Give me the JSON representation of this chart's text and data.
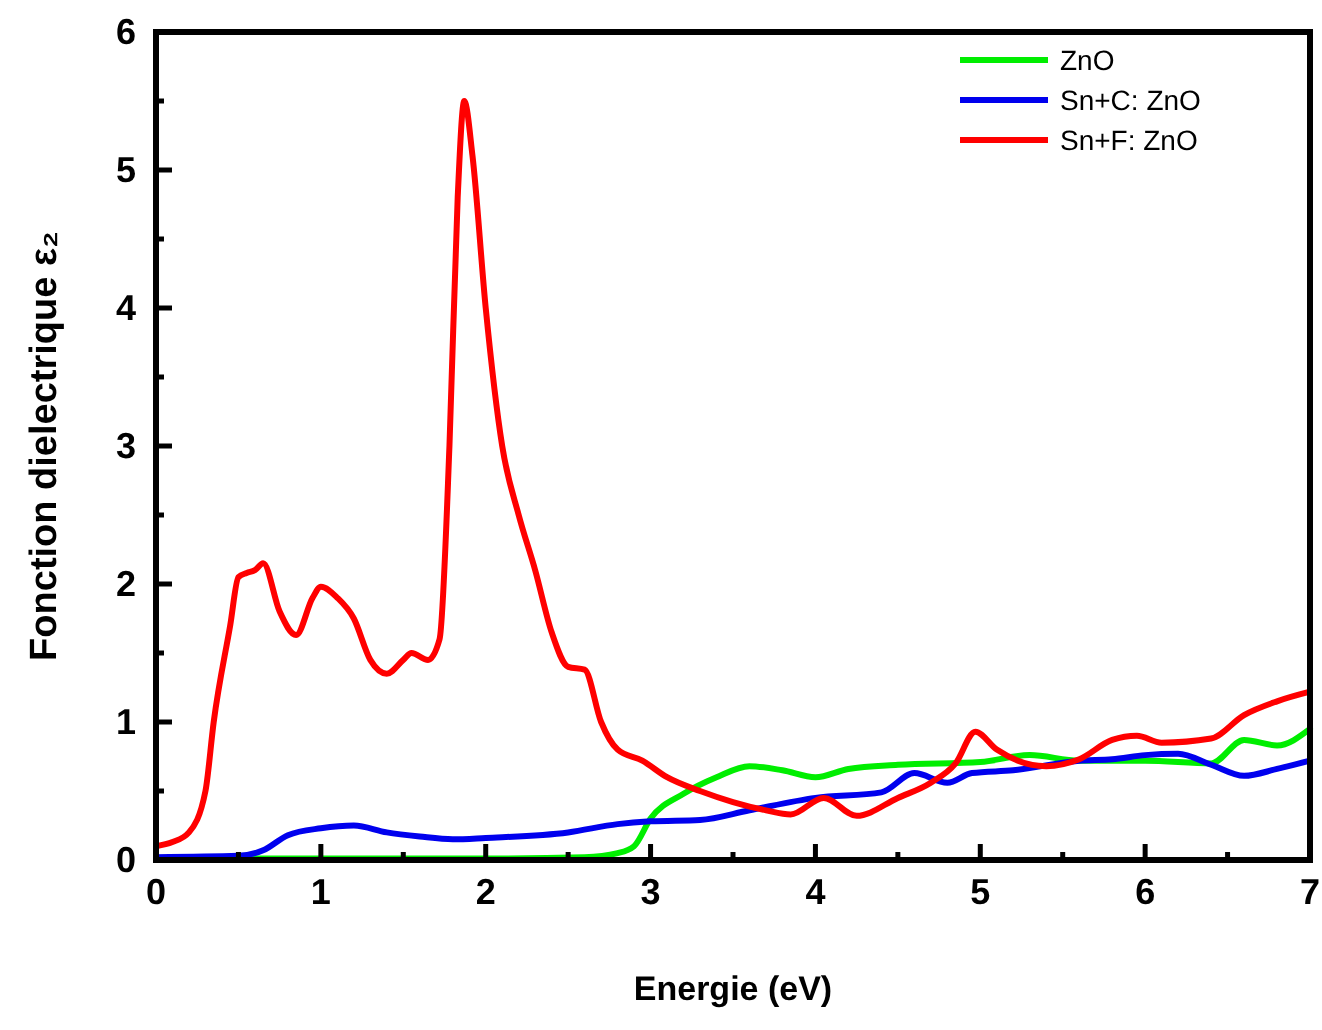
{
  "chart_data": {
    "type": "line",
    "xlabel": "Energie (eV)",
    "ylabel": "Fonction dielectrique  ε₂",
    "xlim": [
      0,
      7
    ],
    "ylim": [
      0,
      6
    ],
    "xticks": [
      0,
      {
        "value": 0.5,
        "label": null
      },
      1,
      {
        "value": 1.5,
        "label": null
      },
      2,
      {
        "value": 2.5,
        "label": null
      },
      3,
      {
        "value": 3.5,
        "label": null
      },
      4,
      {
        "value": 4.5,
        "label": null
      },
      5,
      {
        "value": 5.5,
        "label": null
      },
      6,
      {
        "value": 6.5,
        "label": null
      },
      7
    ],
    "yticks": [
      0,
      {
        "value": 0.5,
        "label": null
      },
      1,
      {
        "value": 1.5,
        "label": null
      },
      2,
      {
        "value": 2.5,
        "label": null
      },
      3,
      {
        "value": 3.5,
        "label": null
      },
      4,
      {
        "value": 4.5,
        "label": null
      },
      5,
      {
        "value": 5.5,
        "label": null
      },
      6
    ],
    "grid": false,
    "legend": "top right",
    "line_style": "solid",
    "marker": "none",
    "series": [
      {
        "name": "ZnO",
        "color": "#00ee00",
        "x": [
          0,
          1,
          2,
          2.6,
          2.8,
          2.9,
          3.0,
          3.2,
          3.4,
          3.6,
          3.8,
          4.0,
          4.2,
          4.5,
          5.0,
          5.3,
          5.6,
          6.0,
          6.4,
          6.6,
          6.8,
          7.0
        ],
        "values": [
          0.01,
          0.01,
          0.01,
          0.02,
          0.05,
          0.1,
          0.3,
          0.48,
          0.6,
          0.68,
          0.65,
          0.6,
          0.66,
          0.69,
          0.71,
          0.76,
          0.72,
          0.72,
          0.7,
          0.87,
          0.83,
          0.95
        ]
      },
      {
        "name": "Sn+C: ZnO",
        "color": "#0000ee",
        "x": [
          0,
          0.5,
          0.65,
          0.8,
          1.0,
          1.2,
          1.4,
          1.6,
          1.8,
          2.0,
          2.5,
          2.8,
          3.0,
          3.3,
          3.6,
          4.0,
          4.4,
          4.6,
          4.8,
          4.95,
          5.2,
          5.6,
          5.8,
          6.0,
          6.2,
          6.4,
          6.6,
          6.8,
          7.0
        ],
        "values": [
          0.02,
          0.03,
          0.07,
          0.18,
          0.23,
          0.25,
          0.2,
          0.17,
          0.15,
          0.16,
          0.2,
          0.26,
          0.28,
          0.29,
          0.36,
          0.45,
          0.49,
          0.63,
          0.56,
          0.63,
          0.65,
          0.72,
          0.73,
          0.76,
          0.77,
          0.69,
          0.61,
          0.66,
          0.72
        ]
      },
      {
        "name": "Sn+F: ZnO",
        "color": "#ff0000",
        "x": [
          0,
          0.1,
          0.2,
          0.3,
          0.35,
          0.45,
          0.5,
          0.55,
          0.6,
          0.65,
          0.75,
          0.85,
          0.95,
          1.0,
          1.1,
          1.2,
          1.3,
          1.4,
          1.5,
          1.55,
          1.65,
          1.72,
          1.78,
          1.83,
          1.87,
          1.92,
          2.0,
          2.1,
          2.2,
          2.3,
          2.4,
          2.5,
          2.6,
          2.7,
          2.8,
          2.95,
          3.1,
          3.3,
          3.5,
          3.7,
          3.85,
          4.05,
          4.25,
          4.5,
          4.7,
          4.85,
          4.97,
          5.1,
          5.4,
          5.6,
          5.8,
          5.95,
          6.1,
          6.4,
          6.6,
          6.8,
          7.0
        ],
        "values": [
          0.1,
          0.13,
          0.2,
          0.5,
          1.0,
          1.7,
          2.05,
          2.08,
          2.1,
          2.15,
          1.8,
          1.63,
          1.9,
          1.98,
          1.9,
          1.75,
          1.45,
          1.35,
          1.45,
          1.5,
          1.45,
          1.6,
          3.0,
          4.8,
          5.5,
          5.1,
          4.0,
          3.0,
          2.5,
          2.1,
          1.65,
          1.4,
          1.38,
          1.0,
          0.8,
          0.72,
          0.6,
          0.5,
          0.42,
          0.36,
          0.33,
          0.45,
          0.32,
          0.45,
          0.56,
          0.7,
          0.93,
          0.8,
          0.68,
          0.73,
          0.87,
          0.9,
          0.85,
          0.88,
          1.05,
          1.15,
          1.22
        ]
      }
    ]
  }
}
